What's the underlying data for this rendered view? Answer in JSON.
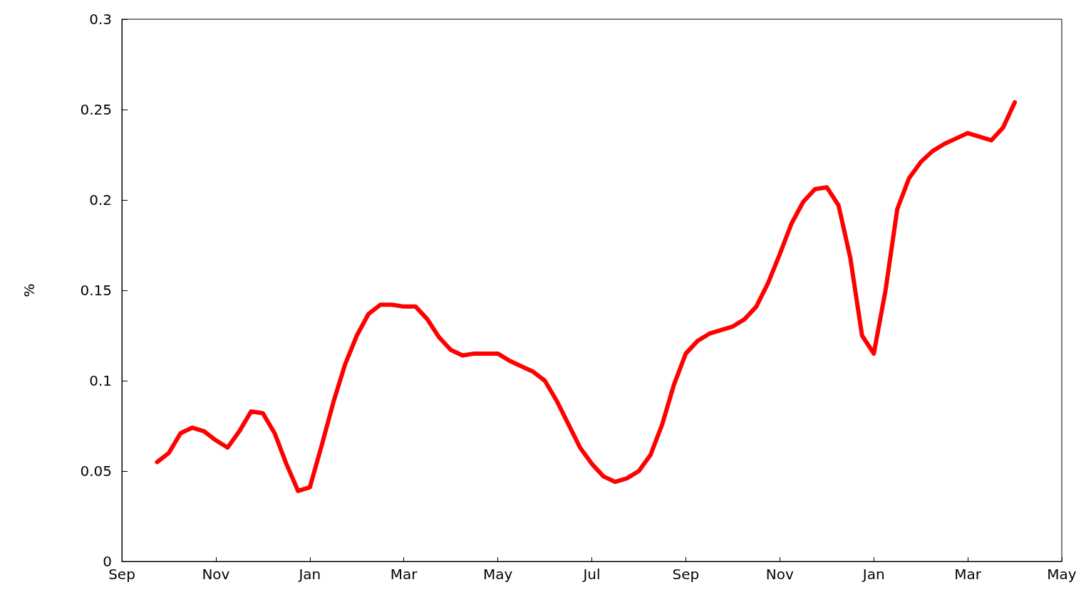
{
  "chart_data": {
    "type": "line",
    "ylabel": "%",
    "categories": [
      "Sep",
      null,
      null,
      null,
      null,
      null,
      null,
      null,
      "Nov",
      null,
      null,
      null,
      null,
      null,
      null,
      null,
      "Jan",
      null,
      null,
      null,
      null,
      null,
      null,
      null,
      "Mar",
      null,
      null,
      null,
      null,
      null,
      null,
      null,
      "May",
      null,
      null,
      null,
      null,
      null,
      null,
      null,
      "Jul",
      null,
      null,
      null,
      null,
      null,
      null,
      null,
      "Sep",
      null,
      null,
      null,
      null,
      null,
      null,
      null,
      "Nov",
      null,
      null,
      null,
      null,
      null,
      null,
      null,
      "Jan",
      null,
      null,
      null,
      null,
      null,
      null,
      null,
      "Mar",
      null,
      null,
      null,
      null,
      null,
      null,
      null,
      "May"
    ],
    "ylim": [
      0,
      0.3
    ],
    "yticks": [
      0,
      0.05,
      0.1,
      0.15,
      0.2,
      0.25,
      0.3
    ],
    "series": [
      {
        "color": "#ff0000",
        "values": [
          null,
          null,
          null,
          0.055,
          0.06,
          0.071,
          0.074,
          0.072,
          0.067,
          0.063,
          0.072,
          0.083,
          0.082,
          0.071,
          0.054,
          0.039,
          0.041,
          0.064,
          0.088,
          0.109,
          0.125,
          0.137,
          0.142,
          0.142,
          0.141,
          0.141,
          0.134,
          0.124,
          0.117,
          0.114,
          0.115,
          0.115,
          0.115,
          0.111,
          0.108,
          0.105,
          0.1,
          0.089,
          0.076,
          0.063,
          0.054,
          0.047,
          0.044,
          0.046,
          0.05,
          0.059,
          0.076,
          0.098,
          0.115,
          0.122,
          0.126,
          0.128,
          0.13,
          0.134,
          0.141,
          0.154,
          0.17,
          0.187,
          0.199,
          0.206,
          0.207,
          0.197,
          0.168,
          0.125,
          0.115,
          0.15,
          0.195,
          0.212,
          0.221,
          0.227,
          0.231,
          0.234,
          0.237,
          0.235,
          0.233,
          0.24,
          0.254,
          null,
          null,
          null,
          null
        ]
      }
    ]
  }
}
